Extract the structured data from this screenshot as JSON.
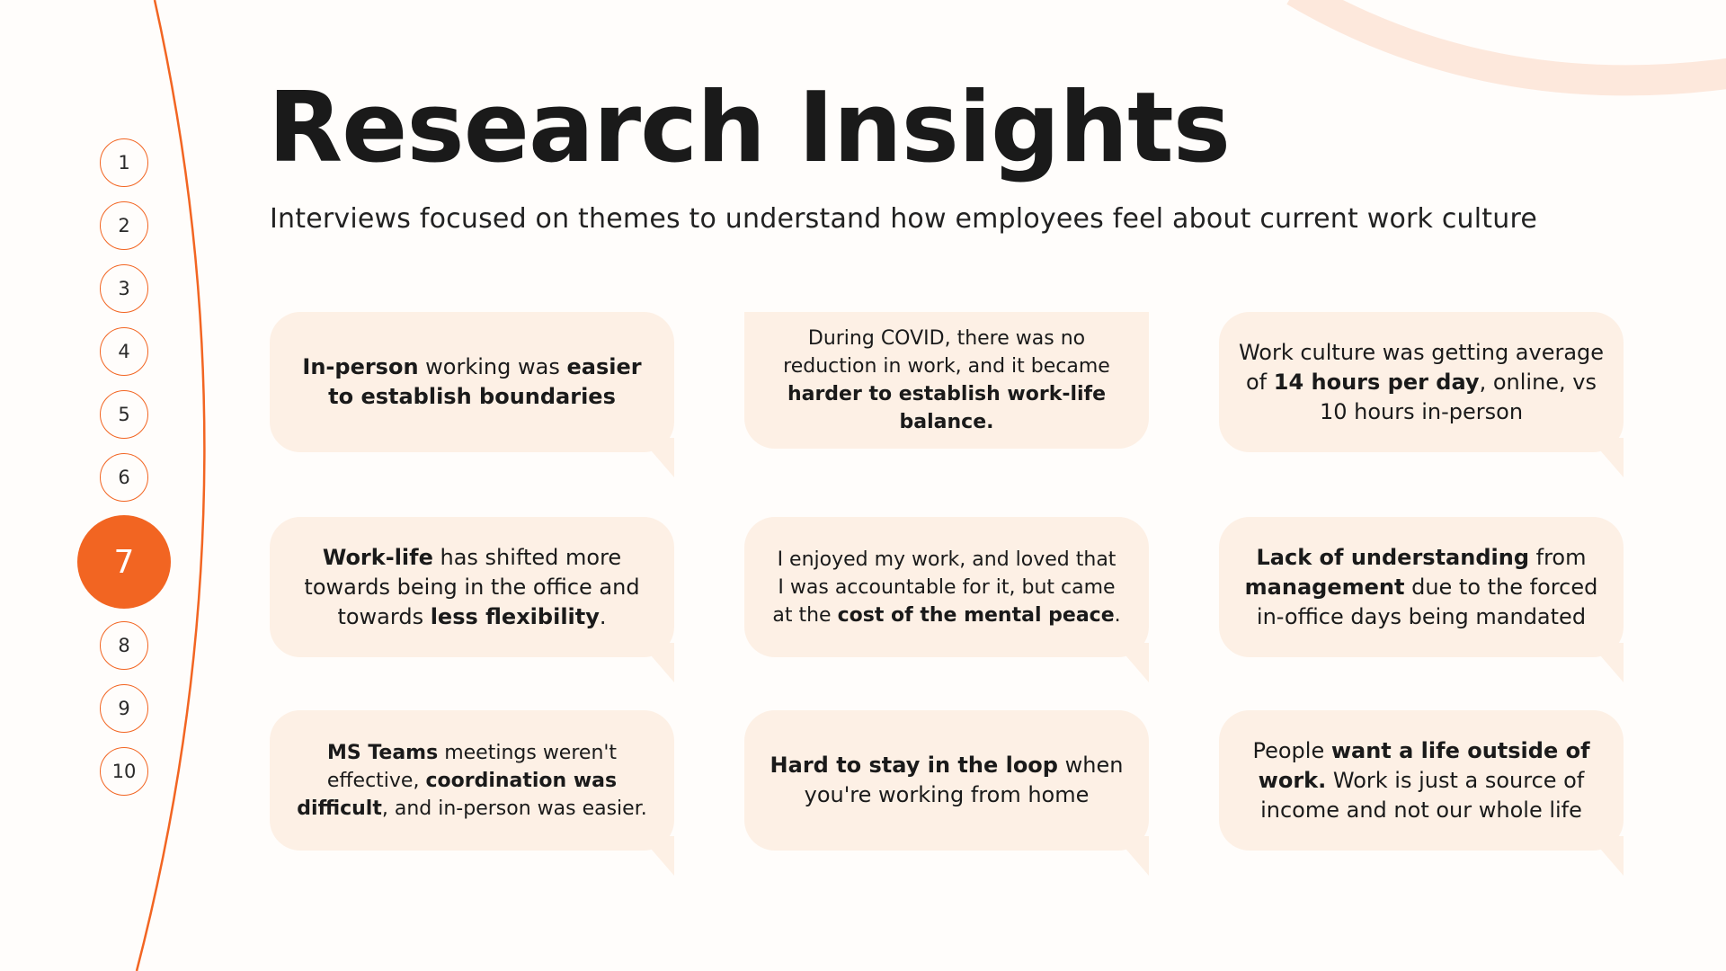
{
  "slide": {
    "title": "Research Insights",
    "subtitle": "Interviews focused on themes to understand how employees feel about current work culture",
    "accent_color": "#f26522",
    "bubble_color": "#fdf0e5",
    "arc_color": "#fde8dc"
  },
  "nav": {
    "items": [
      {
        "label": "1"
      },
      {
        "label": "2"
      },
      {
        "label": "3"
      },
      {
        "label": "4"
      },
      {
        "label": "5"
      },
      {
        "label": "6"
      },
      {
        "label": "7",
        "active": true
      },
      {
        "label": "8"
      },
      {
        "label": "9"
      },
      {
        "label": "10"
      }
    ]
  },
  "insights": [
    {
      "segments": [
        {
          "t": "In-person",
          "b": true
        },
        {
          "t": " working was "
        },
        {
          "t": "easier to establish boundaries",
          "b": true
        }
      ]
    },
    {
      "segments": [
        {
          "t": "During COVID, there was no reduction in work, and it became "
        },
        {
          "t": "harder to establish work-life balance.",
          "b": true
        }
      ]
    },
    {
      "segments": [
        {
          "t": "Work culture was getting average of "
        },
        {
          "t": "14 hours per day",
          "b": true
        },
        {
          "t": ", online, vs 10 hours in-person"
        }
      ]
    },
    {
      "segments": [
        {
          "t": "Work-life",
          "b": true
        },
        {
          "t": " has shifted more towards being in the office and towards "
        },
        {
          "t": "less flexibility",
          "b": true
        },
        {
          "t": "."
        }
      ]
    },
    {
      "segments": [
        {
          "t": "I enjoyed my work, and loved that I was accountable for it, but came at the "
        },
        {
          "t": "cost of the mental peace",
          "b": true
        },
        {
          "t": "."
        }
      ]
    },
    {
      "segments": [
        {
          "t": "Lack of understanding",
          "b": true
        },
        {
          "t": " from "
        },
        {
          "t": "management",
          "b": true
        },
        {
          "t": " due to the forced in-office days being mandated"
        }
      ]
    },
    {
      "segments": [
        {
          "t": "MS Teams",
          "b": true
        },
        {
          "t": " meetings weren't effective, "
        },
        {
          "t": "coordination was difficult",
          "b": true
        },
        {
          "t": ", and in-person was easier."
        }
      ]
    },
    {
      "segments": [
        {
          "t": "Hard to stay in the loop",
          "b": true
        },
        {
          "t": " when you're working from home"
        }
      ]
    },
    {
      "segments": [
        {
          "t": "People "
        },
        {
          "t": "want a life outside of work.",
          "b": true
        },
        {
          "t": " Work is just a source of income and not our whole life"
        }
      ]
    }
  ]
}
